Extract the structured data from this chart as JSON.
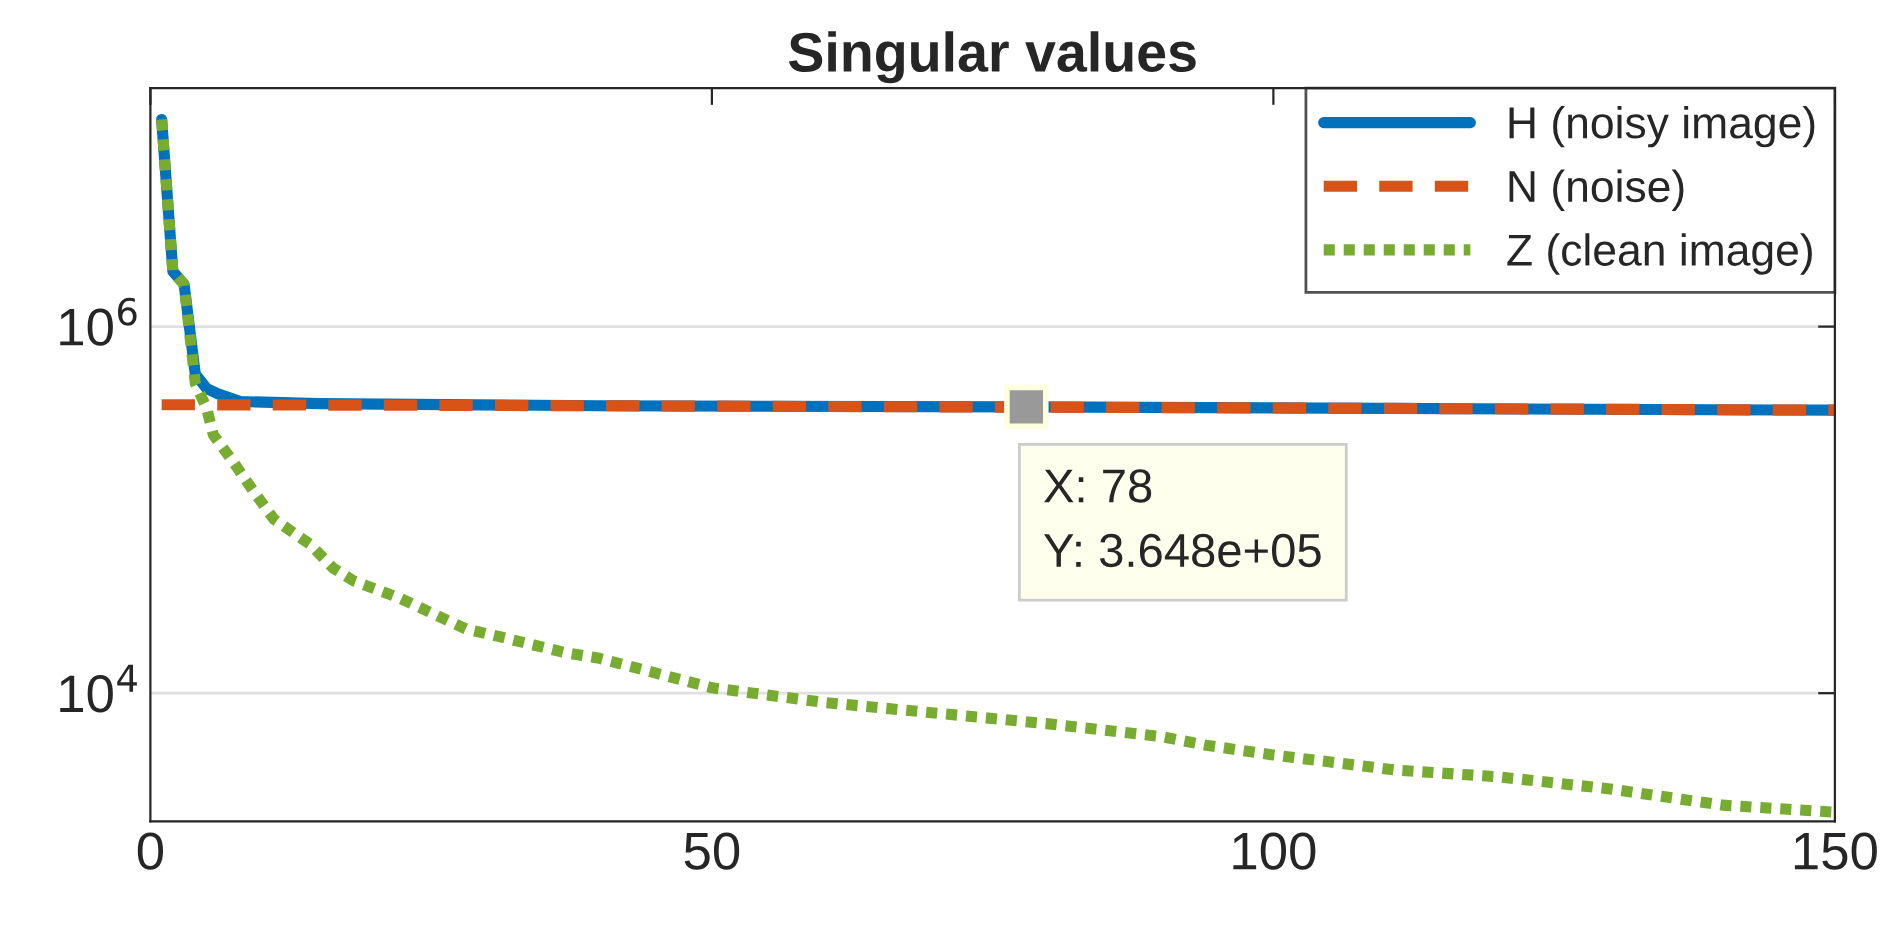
{
  "chart_data": {
    "type": "line",
    "title": "Singular values",
    "log": "y",
    "grid": "y",
    "legend": "top right",
    "xlim": [
      0,
      150
    ],
    "ylim": [
      2000,
      20000000
    ],
    "xticks": [
      0,
      50,
      100,
      150
    ],
    "yticks": [
      {
        "value": 10000,
        "label": "10$^{4}$"
      },
      {
        "value": 1000000,
        "label": "10$^{6}$"
      }
    ],
    "series": [
      {
        "name": "H (noisy image)",
        "color": "#0072bd",
        "line_style": "solid",
        "x": [
          1,
          2,
          3,
          4,
          5,
          6,
          8,
          15,
          40,
          78,
          110,
          150
        ],
        "values": [
          13500000,
          2000000,
          1700000,
          550000,
          460000,
          430000,
          390000,
          380000,
          370000,
          364800,
          358000,
          350000
        ]
      },
      {
        "name": "N (noise)",
        "color": "#d95319",
        "line_style": "dashed",
        "x": [
          1,
          40,
          110,
          150
        ],
        "values": [
          375000,
          370000,
          358000,
          350000
        ]
      },
      {
        "name": "Z (clean image)",
        "color": "#77ac30",
        "line_style": "dotted",
        "x": [
          1,
          2,
          3,
          4,
          5,
          5.6,
          7.4,
          9.2,
          11,
          14.2,
          16.3,
          18.1,
          22.2,
          28.1,
          31,
          37,
          40,
          50,
          60,
          80,
          90,
          94,
          100,
          111,
          120,
          130,
          140,
          150
        ],
        "values": [
          13500000,
          2000000,
          1700000,
          490000,
          360000,
          257000,
          182000,
          126000,
          89000,
          65000,
          48000,
          41000,
          33000,
          22400,
          20400,
          16600,
          15500,
          10700,
          8900,
          6800,
          5800,
          5200,
          4600,
          3800,
          3500,
          3000,
          2450,
          2240
        ]
      }
    ],
    "annotations": [
      {
        "text": "X: 78\nY: 3.648e+05",
        "x": 78,
        "y": 364800
      }
    ]
  }
}
